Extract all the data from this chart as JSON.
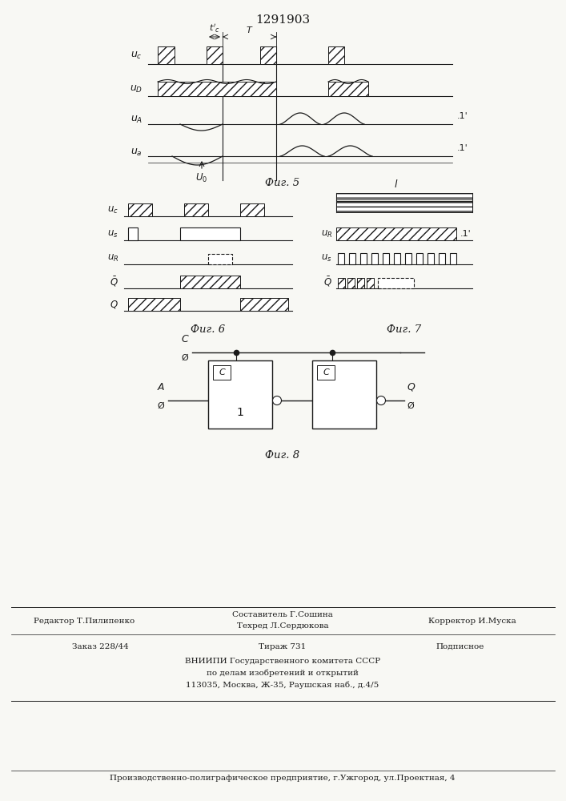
{
  "title": "1291903",
  "bg_color": "#f8f8f4",
  "line_color": "#1a1a1a",
  "fig5_label": "Фиг. 5",
  "fig6_label": "Фиг. 6",
  "fig7_label": "Фиг. 7",
  "fig8_label": "Фиг. 8",
  "footer": {
    "line1_left": "Редактор Т.Пилипенко",
    "line1_center": "Техред Л.Сердюкова",
    "line1_center2": "Составитель Г.Сошина",
    "line1_right": "Корректор И.Муска",
    "line2_left": "Заказ 228/44",
    "line2_center": "Тираж 731",
    "line2_right": "Подписное",
    "line3": "ВНИИПИ Государственного комитета СССР",
    "line4": "по делам изобретений и открытий",
    "line5": "113035, Москва, Ж-35, Раушская наб., д.4/5",
    "line6": "Производственно-полиграфическое предприятие, г.Ужгород, ул.Проектная, 4"
  }
}
